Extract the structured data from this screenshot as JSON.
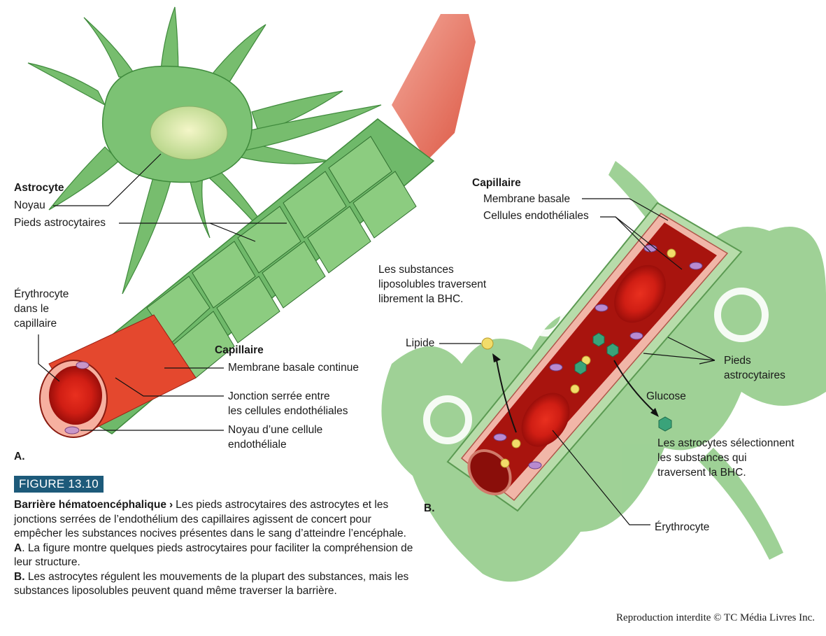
{
  "panelA": {
    "astrocyte": "Astrocyte",
    "noyau": "Noyau",
    "pieds": "Pieds astrocytaires",
    "erythrocyte": [
      "Érythrocyte",
      "dans le",
      "capillaire"
    ],
    "capillaire": "Capillaire",
    "membrane": "Membrane basale continue",
    "jonction": [
      "Jonction serrée entre",
      "les cellules endothéliales"
    ],
    "noyau_cell": [
      "Noyau d’une cellule",
      "endothéliale"
    ],
    "panel_letter": "A."
  },
  "panelB": {
    "capillaire": "Capillaire",
    "membrane": "Membrane basale",
    "cellules": "Cellules endothéliales",
    "substances": [
      "Les substances",
      "liposolubles traversent",
      "librement la BHC."
    ],
    "lipide": "Lipide",
    "pieds": [
      "Pieds",
      "astrocytaires"
    ],
    "glucose": "Glucose",
    "astrocytes_sel": [
      "Les astrocytes sélectionnent",
      "les substances qui",
      "traversent la BHC."
    ],
    "erythrocyte": "Érythrocyte",
    "panel_letter": "B."
  },
  "figure": {
    "badge": "FIGURE 13.10",
    "title": "Barrière hématoencéphalique",
    "arrow": "›",
    "caption_1": "Les pieds astrocytaires des astrocytes et les jonctions serrées de l’endothélium des capillaires agissent de concert pour empêcher les substances nocives présentes dans le sang d’atteindre l’encéphale.",
    "a_letter": "A",
    "caption_2": ". La figure montre quelques pieds astrocytaires pour faciliter la compréhension de leur structure.",
    "b_letter": "B.",
    "caption_3": "Les astrocytes régulent les mouvements de la plupart des substances, mais les substances liposolubles peuvent quand même traverser la barrière."
  },
  "credit": "Reproduction interdite © TC Média Livres Inc.",
  "colors": {
    "astro_green": "#6fb96a",
    "astro_light": "#a8d8a0",
    "blood_red": "#c8281e",
    "vessel_pink": "#f0a89c",
    "badge_blue": "#1d5a7a"
  }
}
